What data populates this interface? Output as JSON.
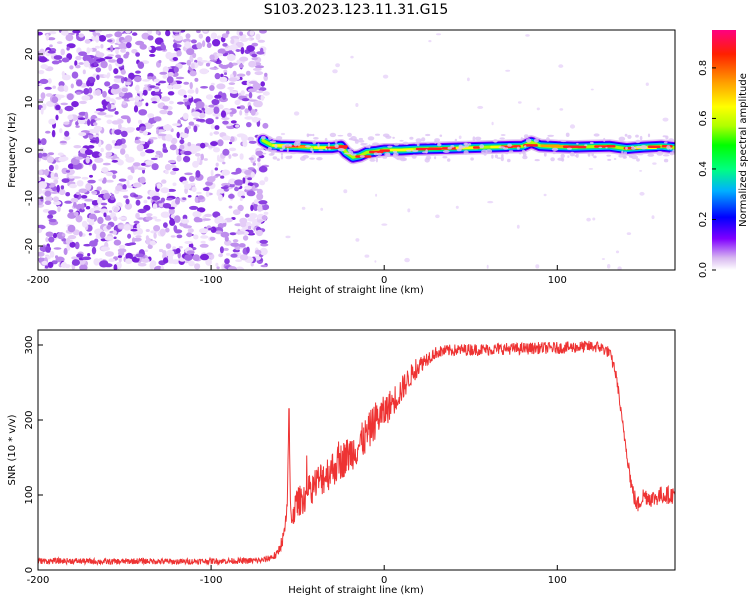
{
  "title": "S103.2023.123.11.31.G15",
  "chart_data": [
    {
      "type": "heatmap",
      "xlabel": "Height of straight line (km)",
      "ylabel": "Frequency (Hz)",
      "xlim": [
        -200,
        168
      ],
      "ylim": [
        -25,
        25
      ],
      "x_ticks": [
        -200,
        -100,
        0,
        100
      ],
      "y_ticks": [
        -20,
        -10,
        0,
        10,
        20
      ],
      "grid": false,
      "colorbar": {
        "label": "Normalized spectral amplitude",
        "range": [
          0,
          0.95
        ],
        "ticks": [
          "0.0",
          "0.2",
          "0.4",
          "0.6",
          "0.8"
        ],
        "colors": [
          "#ffffff",
          "#d8b8f0",
          "#8000ff",
          "#0000ff",
          "#00b0ff",
          "#00ff80",
          "#00ff00",
          "#b0ff00",
          "#ffff00",
          "#ffa000",
          "#ff2000",
          "#ff0080"
        ]
      },
      "noise_region_x": [
        -200,
        -68
      ],
      "ridge": {
        "x": [
          -70,
          -65,
          -60,
          -50,
          -40,
          -30,
          -25,
          -22,
          -18,
          -14,
          -10,
          -5,
          0,
          10,
          20,
          30,
          40,
          50,
          60,
          70,
          80,
          85,
          90,
          100,
          110,
          120,
          130,
          140,
          150,
          160,
          168
        ],
        "freq": [
          2.0,
          1.0,
          0.8,
          0.7,
          0.5,
          0.5,
          0.8,
          -0.5,
          -1.5,
          -1.2,
          -0.5,
          -0.3,
          0.0,
          0.0,
          0.2,
          0.3,
          0.4,
          0.5,
          0.6,
          0.7,
          0.8,
          1.6,
          0.9,
          0.7,
          0.6,
          0.7,
          0.8,
          0.3,
          0.6,
          0.8,
          0.5
        ]
      }
    },
    {
      "type": "line",
      "xlabel": "Height of straight line (km)",
      "ylabel": "SNR (10 * v/v)",
      "xlim": [
        -200,
        168
      ],
      "ylim": [
        0,
        320
      ],
      "x_ticks": [
        -200,
        -100,
        0,
        100
      ],
      "y_ticks": [
        0,
        100,
        200,
        300
      ],
      "grid": false,
      "series": [
        {
          "color": "#ee3333",
          "x": [
            -200,
            -180,
            -160,
            -140,
            -120,
            -100,
            -80,
            -70,
            -62,
            -58,
            -56,
            -55,
            -54,
            -52,
            -50,
            -45,
            -40,
            -35,
            -30,
            -25,
            -20,
            -15,
            -10,
            -5,
            0,
            5,
            10,
            15,
            20,
            25,
            30,
            35,
            40,
            50,
            60,
            70,
            80,
            90,
            100,
            110,
            120,
            125,
            130,
            133,
            135,
            137,
            140,
            143,
            146,
            150,
            155,
            160,
            165,
            168
          ],
          "values": [
            12,
            12,
            11,
            12,
            11,
            12,
            12,
            13,
            20,
            45,
            80,
            215,
            70,
            80,
            90,
            100,
            115,
            125,
            135,
            145,
            155,
            165,
            180,
            200,
            210,
            225,
            240,
            258,
            272,
            283,
            290,
            292,
            293,
            294,
            294,
            295,
            295,
            296,
            296,
            297,
            298,
            297,
            290,
            270,
            245,
            205,
            160,
            110,
            85,
            100,
            95,
            100,
            100,
            100
          ],
          "noise": [
            4,
            4,
            4,
            4,
            4,
            4,
            4,
            4,
            6,
            10,
            15,
            0,
            20,
            20,
            20,
            22,
            22,
            25,
            25,
            25,
            25,
            25,
            25,
            25,
            22,
            20,
            18,
            15,
            12,
            10,
            8,
            8,
            8,
            8,
            8,
            8,
            8,
            8,
            8,
            8,
            8,
            8,
            8,
            8,
            8,
            8,
            10,
            12,
            12,
            12,
            12,
            12,
            12,
            12
          ]
        }
      ]
    }
  ]
}
